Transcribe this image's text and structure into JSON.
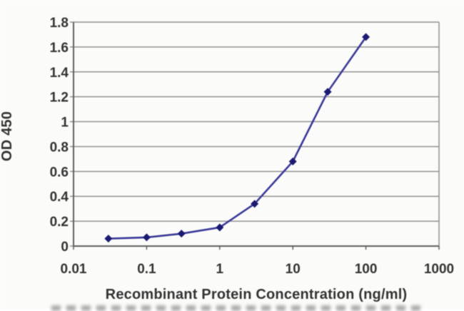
{
  "figure": {
    "background": "#fbfbf9"
  },
  "chart_data": {
    "type": "line",
    "title": "",
    "xlabel": "Recombinant Protein Concentration (ng/ml)",
    "ylabel": "OD 450",
    "x_scale": "log",
    "xlim": [
      0.01,
      1000
    ],
    "ylim": [
      0,
      1.8
    ],
    "x": [
      0.03,
      0.1,
      0.3,
      1,
      3,
      10,
      30,
      100
    ],
    "series": [
      {
        "name": "OD 450",
        "values": [
          0.06,
          0.07,
          0.1,
          0.15,
          0.34,
          0.68,
          1.24,
          1.68
        ]
      }
    ],
    "x_tick_values": [
      0.01,
      0.1,
      1,
      10,
      100,
      1000
    ],
    "x_tick_labels": [
      "0.01",
      "0.1",
      "1",
      "10",
      "100",
      "1000"
    ],
    "y_tick_values": [
      0,
      0.2,
      0.4,
      0.6,
      0.8,
      1,
      1.2,
      1.4,
      1.6,
      1.8
    ],
    "y_tick_labels": [
      "0",
      "0.2",
      "0.4",
      "0.6",
      "0.8",
      "1",
      "1.2",
      "1.4",
      "1.6",
      "1.8"
    ],
    "grid": "horizontal",
    "legend": "none",
    "marker": "diamond",
    "colors": {
      "line": "#3a3a99",
      "marker": "#1b1b72",
      "grid": "#919191",
      "axis": "#5f5f5f",
      "text": "#333333",
      "background": "#fbfbf9"
    }
  }
}
